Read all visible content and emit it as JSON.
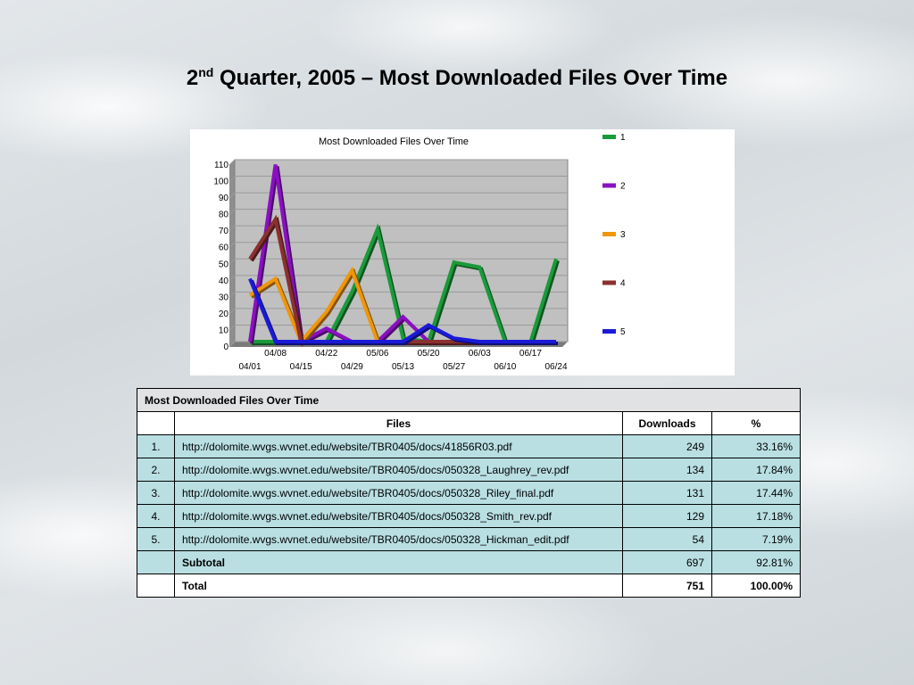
{
  "slide": {
    "title_prefix": "2",
    "title_sup": "nd",
    "title_rest": " Quarter, 2005 – Most Downloaded Files Over Time"
  },
  "chart_data": {
    "type": "line",
    "title": "Most Downloaded Files Over Time",
    "x": [
      "04/01",
      "04/08",
      "04/15",
      "04/22",
      "04/29",
      "05/06",
      "05/13",
      "05/20",
      "05/27",
      "06/03",
      "06/10",
      "06/17",
      "06/24"
    ],
    "x_ticks_top": [
      "04/08",
      "04/22",
      "05/06",
      "05/20",
      "06/03",
      "06/17"
    ],
    "x_ticks_bottom": [
      "04/01",
      "04/15",
      "04/29",
      "05/13",
      "05/27",
      "06/10",
      "06/24"
    ],
    "ylim": [
      0,
      110
    ],
    "yticks": [
      0,
      10,
      20,
      30,
      40,
      50,
      60,
      70,
      80,
      90,
      100,
      110
    ],
    "grid": true,
    "legend_position": "right",
    "series": [
      {
        "name": "1",
        "color": "#1a9a3a",
        "values": [
          0,
          0,
          0,
          0,
          30,
          68,
          2,
          0,
          48,
          45,
          0,
          0,
          50
        ]
      },
      {
        "name": "2",
        "color": "#8a10c0",
        "values": [
          0,
          107,
          0,
          8,
          0,
          0,
          15,
          0,
          0,
          0,
          0,
          0,
          0
        ]
      },
      {
        "name": "3",
        "color": "#f0960a",
        "values": [
          28,
          38,
          0,
          18,
          43,
          0,
          0,
          0,
          0,
          0,
          0,
          0,
          0
        ]
      },
      {
        "name": "4",
        "color": "#8b3030",
        "values": [
          50,
          74,
          0,
          0,
          0,
          0,
          0,
          0,
          0,
          0,
          0,
          0,
          0
        ]
      },
      {
        "name": "5",
        "color": "#1a1ad8",
        "values": [
          38,
          0,
          0,
          0,
          0,
          0,
          0,
          10,
          2,
          0,
          0,
          0,
          0
        ]
      }
    ]
  },
  "table": {
    "caption": "Most Downloaded Files Over Time",
    "headers": {
      "files": "Files",
      "downloads": "Downloads",
      "pct": "%"
    },
    "rows": [
      {
        "num": "1.",
        "file": "http://dolomite.wvgs.wvnet.edu/website/TBR0405/docs/41856R03.pdf",
        "downloads": "249",
        "pct": "33.16%"
      },
      {
        "num": "2.",
        "file": "http://dolomite.wvgs.wvnet.edu/website/TBR0405/docs/050328_Laughrey_rev.pdf",
        "downloads": "134",
        "pct": "17.84%"
      },
      {
        "num": "3.",
        "file": "http://dolomite.wvgs.wvnet.edu/website/TBR0405/docs/050328_Riley_final.pdf",
        "downloads": "131",
        "pct": "17.44%"
      },
      {
        "num": "4.",
        "file": "http://dolomite.wvgs.wvnet.edu/website/TBR0405/docs/050328_Smith_rev.pdf",
        "downloads": "129",
        "pct": "17.18%"
      },
      {
        "num": "5.",
        "file": "http://dolomite.wvgs.wvnet.edu/website/TBR0405/docs/050328_Hickman_edit.pdf",
        "downloads": "54",
        "pct": "7.19%"
      }
    ],
    "subtotal": {
      "label": "Subtotal",
      "downloads": "697",
      "pct": "92.81%"
    },
    "total": {
      "label": "Total",
      "downloads": "751",
      "pct": "100.00%"
    }
  }
}
